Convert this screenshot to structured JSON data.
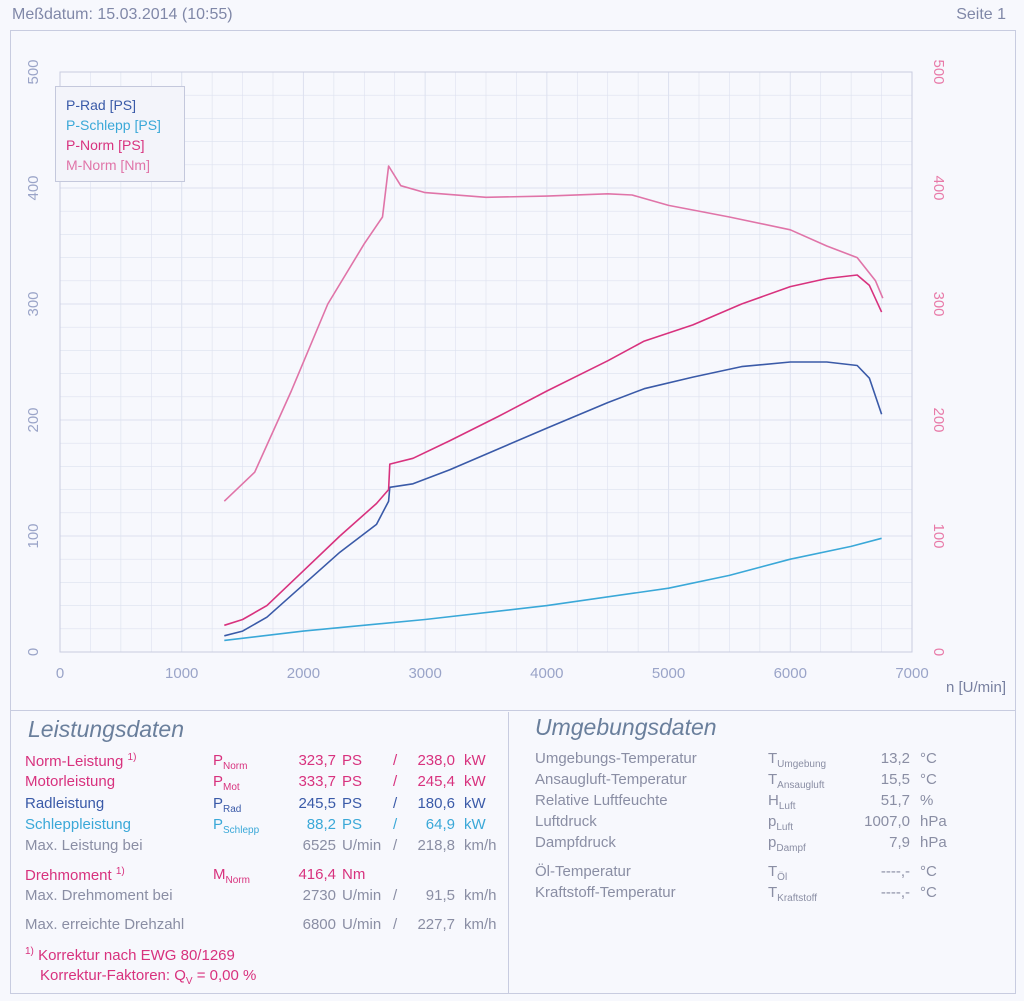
{
  "header": {
    "date": "Meßdatum: 15.03.2014 (10:55)",
    "page": "Seite 1"
  },
  "colors": {
    "p_rad": "#3a5aa8",
    "p_schlepp": "#3aa8d8",
    "p_norm": "#d8327e",
    "m_norm": "#e074a8",
    "axis_left": "#9aa4c8",
    "axis_right": "#e87aa8",
    "grid": "#dde1ef",
    "text_grey": "#8a8ea4"
  },
  "chart_data": {
    "type": "line",
    "xlabel": "n [U/min]",
    "xlim": [
      0,
      7000
    ],
    "ylim": [
      0,
      500
    ],
    "x_ticks": [
      "0",
      "1000",
      "2000",
      "3000",
      "4000",
      "5000",
      "6000",
      "7000"
    ],
    "y_ticks_left": [
      "0",
      "100",
      "200",
      "300",
      "400",
      "500"
    ],
    "y_ticks_right": [
      "0",
      "100",
      "200",
      "300",
      "400",
      "500"
    ],
    "legend": [
      "P-Rad [PS]",
      "P-Schlepp [PS]",
      "P-Norm [PS]",
      "M-Norm [Nm]"
    ],
    "legend_position": "top-left",
    "grid": true,
    "series": [
      {
        "name": "P-Rad [PS]",
        "x": [
          1350,
          1500,
          1700,
          2000,
          2300,
          2600,
          2700,
          2710,
          2900,
          3200,
          3600,
          4000,
          4500,
          4800,
          5200,
          5600,
          6000,
          6300,
          6550,
          6650,
          6750
        ],
        "y": [
          14,
          18,
          30,
          58,
          86,
          110,
          130,
          142,
          145,
          157,
          175,
          193,
          215,
          227,
          237,
          246,
          250,
          250,
          247,
          236,
          205
        ]
      },
      {
        "name": "P-Schlepp [PS]",
        "x": [
          1350,
          2000,
          3000,
          4000,
          5000,
          5500,
          6000,
          6500,
          6750
        ],
        "y": [
          10,
          18,
          28,
          40,
          55,
          66,
          80,
          91,
          98
        ]
      },
      {
        "name": "P-Norm [PS]",
        "x": [
          1350,
          1500,
          1700,
          2000,
          2300,
          2600,
          2700,
          2710,
          2900,
          3200,
          3600,
          4000,
          4500,
          4800,
          5200,
          5600,
          6000,
          6300,
          6550,
          6650,
          6750
        ],
        "y": [
          23,
          28,
          40,
          70,
          100,
          128,
          140,
          162,
          167,
          182,
          203,
          225,
          251,
          268,
          282,
          300,
          315,
          322,
          325,
          316,
          293
        ]
      },
      {
        "name": "M-Norm [Nm]",
        "x": [
          1350,
          1600,
          1900,
          2200,
          2500,
          2650,
          2700,
          2800,
          3000,
          3500,
          4000,
          4500,
          4700,
          5000,
          5500,
          6000,
          6300,
          6550,
          6700,
          6760
        ],
        "y": [
          130,
          155,
          225,
          300,
          352,
          375,
          419,
          402,
          396,
          392,
          393,
          395,
          394,
          385,
          375,
          364,
          350,
          340,
          320,
          305
        ]
      }
    ]
  },
  "leistung": {
    "title": "Leistungsdaten",
    "norm": {
      "label": "Norm-Leistung",
      "sup": "1)",
      "sym": "P",
      "sub": "Norm",
      "v1": "323,7",
      "u1": "PS",
      "sep": "/",
      "v2": "238,0",
      "u2": "kW"
    },
    "motor": {
      "label": "Motorleistung",
      "sym": "P",
      "sub": "Mot",
      "v1": "333,7",
      "u1": "PS",
      "sep": "/",
      "v2": "245,4",
      "u2": "kW"
    },
    "rad": {
      "label": "Radleistung",
      "sym": "P",
      "sub": "Rad",
      "v1": "245,5",
      "u1": "PS",
      "sep": "/",
      "v2": "180,6",
      "u2": "kW"
    },
    "schlepp": {
      "label": "Schleppleistung",
      "sym": "P",
      "sub": "Schlepp",
      "v1": "88,2",
      "u1": "PS",
      "sep": "/",
      "v2": "64,9",
      "u2": "kW"
    },
    "maxleistung": {
      "label": "Max. Leistung bei",
      "v1": "6525",
      "u1": "U/min",
      "sep": "/",
      "v2": "218,8",
      "u2": "km/h"
    },
    "drehmoment": {
      "label": "Drehmoment",
      "sup": "1)",
      "sym": "M",
      "sub": "Norm",
      "v1": "416,4",
      "u1": "Nm"
    },
    "maxdreh": {
      "label": "Max. Drehmoment bei",
      "v1": "2730",
      "u1": "U/min",
      "sep": "/",
      "v2": "91,5",
      "u2": "km/h"
    },
    "maxdrehzahl": {
      "label": "Max. erreichte Drehzahl",
      "v1": "6800",
      "u1": "U/min",
      "sep": "/",
      "v2": "227,7",
      "u2": "km/h"
    },
    "footnote_mark": "1)",
    "footnote": "Korrektur nach EWG 80/1269",
    "faktor_label": "Korrektur-Faktoren: Q",
    "faktor_sub": "V",
    "faktor_value": "=   0,00 %"
  },
  "umgebung": {
    "title": "Umgebungsdaten",
    "rows": [
      {
        "label": "Umgebungs-Temperatur",
        "sym": "T",
        "sub": "Umgebung",
        "value": "13,2",
        "unit": "°C"
      },
      {
        "label": "Ansaugluft-Temperatur",
        "sym": "T",
        "sub": "Ansaugluft",
        "value": "15,5",
        "unit": "°C"
      },
      {
        "label": "Relative Luftfeuchte",
        "sym": "H",
        "sub": "Luft",
        "value": "51,7",
        "unit": "%"
      },
      {
        "label": "Luftdruck",
        "sym": "p",
        "sub": "Luft",
        "value": "1007,0",
        "unit": "hPa"
      },
      {
        "label": "Dampfdruck",
        "sym": "p",
        "sub": "Dampf",
        "value": "7,9",
        "unit": "hPa"
      },
      {
        "label": "Öl-Temperatur",
        "sym": "T",
        "sub": "Öl",
        "value": "----,-",
        "unit": "°C"
      },
      {
        "label": "Kraftstoff-Temperatur",
        "sym": "T",
        "sub": "Kraftstoff",
        "value": "----,-",
        "unit": "°C"
      }
    ]
  }
}
